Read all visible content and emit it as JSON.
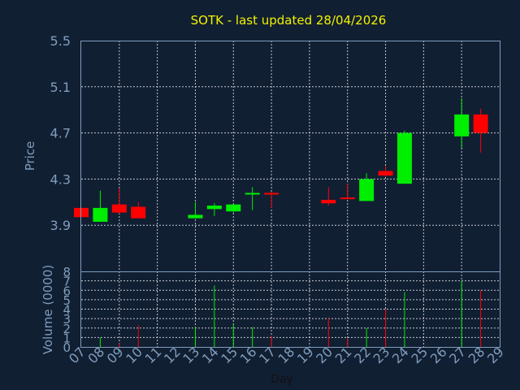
{
  "title": "SOTK - last updated 28/04/2026",
  "colors": {
    "up": "#00ee00",
    "down": "#ff0000",
    "background": "#111f33",
    "axis": "#7f9dbb",
    "title": "#f2f200",
    "grid": "#ffffff"
  },
  "chart_data": {
    "type": "candlestick",
    "title": "SOTK - last updated 28/04/2026",
    "xlabel": "Day",
    "ylabel_price": "Price",
    "ylabel_volume": "Volume (0000)",
    "x_ticks": [
      "07",
      "08",
      "09",
      "10",
      "11",
      "12",
      "13",
      "14",
      "15",
      "16",
      "17",
      "18",
      "19",
      "20",
      "21",
      "22",
      "23",
      "24",
      "25",
      "26",
      "27",
      "28",
      "29"
    ],
    "price_ticks": [
      "3.9",
      "4.3",
      "4.7",
      "5.1",
      "5.5"
    ],
    "price_range": [
      3.5,
      5.5
    ],
    "volume_ticks": [
      "0",
      "1",
      "2",
      "3",
      "4",
      "5",
      "6",
      "7",
      "8"
    ],
    "volume_range": [
      0,
      8
    ],
    "grid": true,
    "candles": [
      {
        "day": "07",
        "open": 4.05,
        "close": 3.97,
        "high": 4.05,
        "low": 3.97,
        "volume": 0.0
      },
      {
        "day": "08",
        "open": 3.93,
        "close": 4.05,
        "high": 4.2,
        "low": 3.93,
        "volume": 1.0
      },
      {
        "day": "09",
        "open": 4.08,
        "close": 4.01,
        "high": 4.22,
        "low": 4.0,
        "volume": 0.4
      },
      {
        "day": "10",
        "open": 4.06,
        "close": 3.96,
        "high": 4.1,
        "low": 3.96,
        "volume": 2.3
      },
      {
        "day": "13",
        "open": 3.96,
        "close": 3.99,
        "high": 4.1,
        "low": 3.96,
        "volume": 2.1
      },
      {
        "day": "14",
        "open": 4.04,
        "close": 4.07,
        "high": 4.09,
        "low": 3.98,
        "volume": 6.5
      },
      {
        "day": "15",
        "open": 4.02,
        "close": 4.08,
        "high": 4.08,
        "low": 4.01,
        "volume": 2.4
      },
      {
        "day": "16",
        "open": 4.17,
        "close": 4.18,
        "high": 4.23,
        "low": 4.03,
        "volume": 2.1
      },
      {
        "day": "17",
        "open": 4.18,
        "close": 4.17,
        "high": 4.19,
        "low": 4.05,
        "volume": 1.2
      },
      {
        "day": "20",
        "open": 4.12,
        "close": 4.09,
        "high": 4.23,
        "low": 4.07,
        "volume": 3.1
      },
      {
        "day": "21",
        "open": 4.14,
        "close": 4.13,
        "high": 4.26,
        "low": 4.13,
        "volume": 0.9
      },
      {
        "day": "22",
        "open": 4.11,
        "close": 4.3,
        "high": 4.35,
        "low": 4.11,
        "volume": 2.0
      },
      {
        "day": "23",
        "open": 4.37,
        "close": 4.33,
        "high": 4.41,
        "low": 4.32,
        "volume": 4.0
      },
      {
        "day": "24",
        "open": 4.26,
        "close": 4.7,
        "high": 4.72,
        "low": 4.26,
        "volume": 5.8
      },
      {
        "day": "27",
        "open": 4.67,
        "close": 4.86,
        "high": 5.0,
        "low": 4.57,
        "volume": 7.0
      },
      {
        "day": "28",
        "open": 4.86,
        "close": 4.7,
        "high": 4.91,
        "low": 4.53,
        "volume": 6.0
      }
    ]
  }
}
